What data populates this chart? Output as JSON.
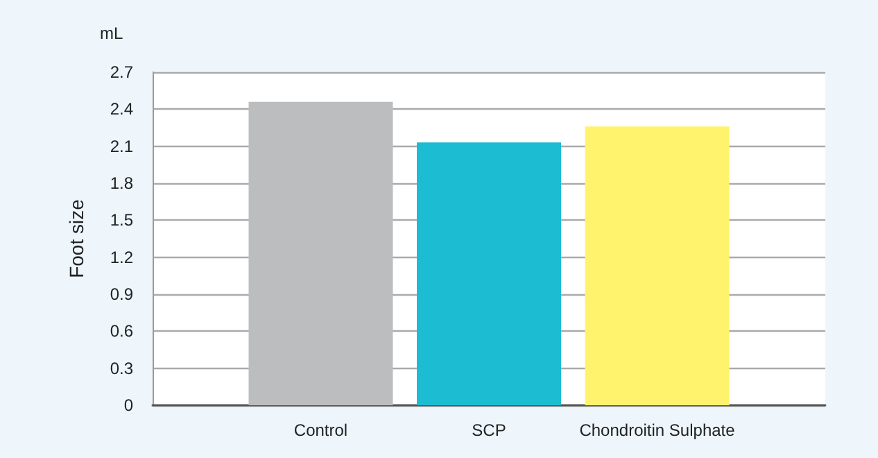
{
  "chart_data": {
    "type": "bar",
    "ylabel": "Foot size",
    "annotations": [
      "mL"
    ],
    "categories": [
      "Control",
      "SCP",
      "Chondroitin Sulphate"
    ],
    "values": [
      2.46,
      2.13,
      2.26
    ],
    "colors": [
      "#bcbdbf",
      "#1cbdd2",
      "#fff36e"
    ],
    "ylim": [
      0,
      2.7
    ],
    "yticks": [
      0,
      0.3,
      0.6,
      0.9,
      1.2,
      1.5,
      1.8,
      2.1,
      2.4,
      2.7
    ],
    "grid": "y"
  }
}
